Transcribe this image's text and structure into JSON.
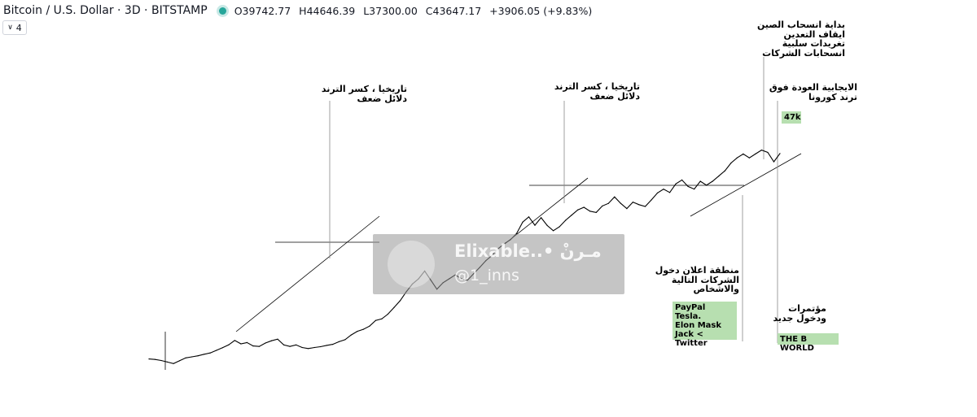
{
  "header": {
    "symbol": "Bitcoin / U.S. Dollar · 3D · BITSTAMP",
    "open": "O39742.77",
    "high": "H44646.39",
    "low": "L37300.00",
    "close": "C43647.17",
    "change": "+3906.05 (+9.83%)",
    "status_color": "#26a69a"
  },
  "indicator_toggle": {
    "label": "4",
    "icon": "chevron-down-icon"
  },
  "watermark": {
    "handle_title": "Elixable..• مـرنْ",
    "handle": "@1_inns"
  },
  "annotations": {
    "trend_break_1": [
      "تاريخيا ، كسر الترند",
      "دلائل ضعف"
    ],
    "trend_break_2": [
      "تاريخيا ، كسر الترند",
      "دلائل ضعف"
    ],
    "china": [
      "بداية انسحاب الصين",
      "ايقاف التعدين",
      "تغريدات سلبية",
      "انسحابات الشركات"
    ],
    "positive_return": [
      "الايجابية العودة فوق",
      "ترند كورونا"
    ],
    "price_47k": "47k",
    "companies_zone": [
      "منطقة اعلان دخول",
      "الشركات التالية",
      "والاشخاص"
    ],
    "companies_list": [
      "PayPal",
      "Tesla.",
      "Elon Mask",
      "Jack < Twitter"
    ],
    "conferences": [
      "مؤتمرات",
      "ودخول جديد"
    ],
    "b_world": "THE B WORLD"
  },
  "chart_data": {
    "type": "line",
    "title": "",
    "xlabel": "",
    "ylabel": "",
    "series": [
      {
        "values": [
          4.2,
          4.0,
          3.6,
          3.0,
          2.4,
          3.5,
          4.6,
          5.0,
          5.4,
          6.0,
          6.5,
          7.5,
          8.5,
          9.6,
          11.3,
          10.0,
          10.5,
          9.2,
          9.0,
          10.3,
          11.2,
          11.8,
          9.6,
          9.0,
          9.6,
          8.6,
          8.2,
          8.6,
          8.9,
          9.4,
          9.8,
          10.8,
          11.6,
          13.4,
          14.8,
          15.6,
          16.8,
          19.0,
          19.6,
          21.4,
          24.0,
          26.6,
          30.0,
          33.0,
          35.0,
          38.0,
          34.5,
          31.0,
          33.5,
          35.0,
          36.5,
          35.0,
          34.5,
          37.0,
          39.4,
          42.0,
          44.0,
          46.6,
          48.5,
          50.0,
          52.4,
          56.8,
          58.8,
          55.6,
          58.5,
          55.5,
          53.5,
          55.0,
          57.5,
          59.5,
          61.5,
          62.5,
          61.0,
          60.5,
          63.0,
          64.0,
          66.5,
          64.0,
          62.0,
          64.5,
          63.5,
          62.8,
          65.3,
          68.0,
          69.5,
          68.2,
          71.5,
          73.0,
          70.5,
          69.5,
          72.5,
          71.0,
          72.5,
          74.5,
          76.5,
          79.5,
          81.5,
          83.0,
          81.5,
          83.0,
          84.5,
          83.6,
          80.0,
          83.2
        ]
      }
    ]
  }
}
